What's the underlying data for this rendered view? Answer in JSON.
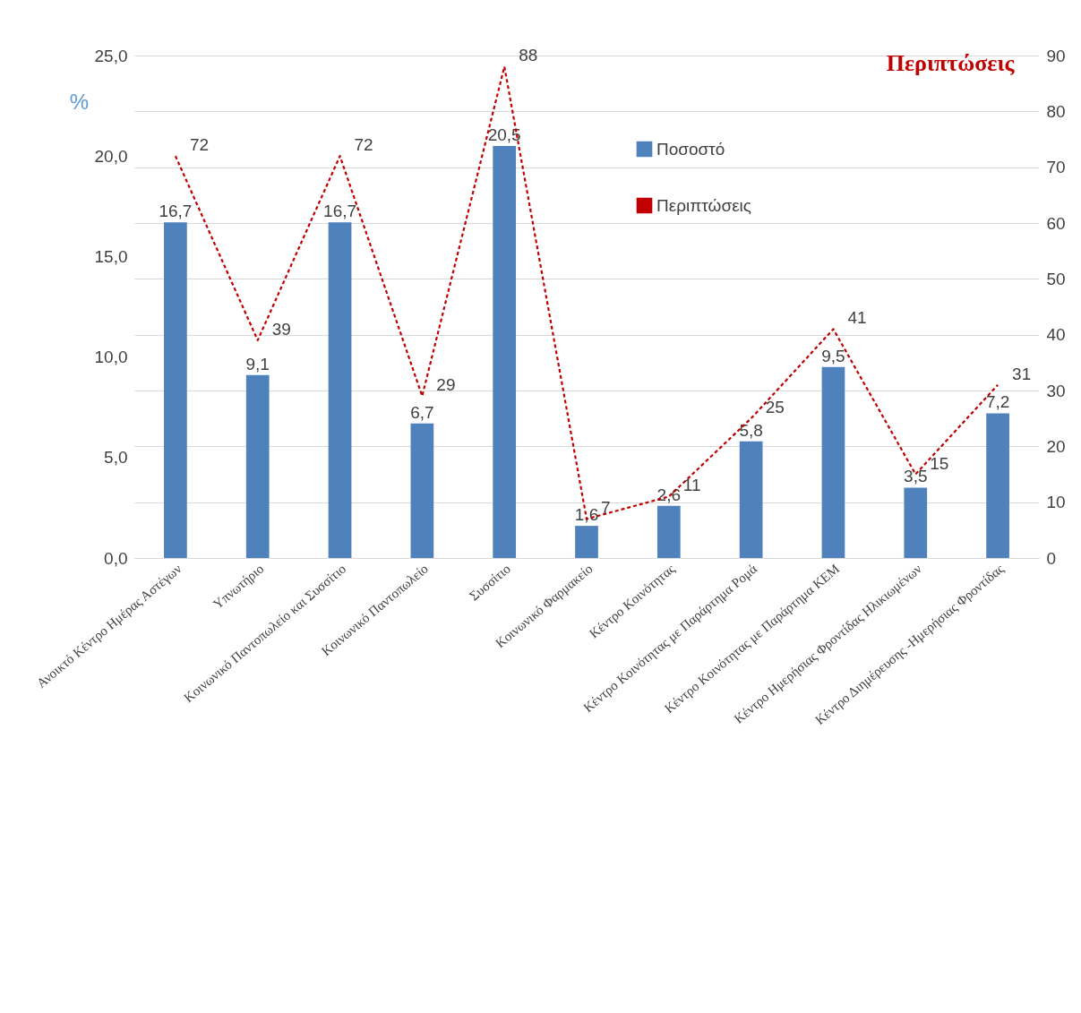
{
  "chart_data": {
    "type": "bar",
    "ylabel": "%",
    "y2label": "Περιπτώσεις",
    "categories": [
      "Ανοικτό Κέντρο Ημέρας Αστέγων",
      "Υπνωτήριο",
      "Κοινωνικό Παντοπωλείο και Συσσίτιο",
      "Κοινωνικό Παντοπωλείο",
      "Συσσίτιο",
      "Κοινωνικό Φαρμακείο",
      "Κέντρο Κοινότητας",
      "Κέντρο Κοινότητας με Παράρτημα Ρομά",
      "Κέντρο Κοινότητας με Παράρτημα ΚΕΜ",
      "Κέντρο Ημερήσιας Φροντίδας Ηλικιωμένων",
      "Κέντρο Διημέρευσης -Ημερήσιας Φροντίδας"
    ],
    "series": [
      {
        "name": "Ποσοστό",
        "color": "#4f81bd",
        "values": [
          16.7,
          9.1,
          16.7,
          6.7,
          20.5,
          1.6,
          2.6,
          5.8,
          9.5,
          3.5,
          7.2
        ],
        "value_labels": [
          "16,7",
          "9,1",
          "16,7",
          "6,7",
          "20,5",
          "1,6",
          "2,6",
          "5,8",
          "9,5",
          "3,5",
          "7,2"
        ]
      },
      {
        "name": "Περιπτώσεις",
        "type": "line",
        "axis": "y2",
        "color": "#c00000",
        "line_style": "dashed",
        "values": [
          72,
          39,
          72,
          29,
          88,
          7,
          11,
          25,
          41,
          15,
          31
        ],
        "data_labels": true
      }
    ],
    "ylim": [
      0,
      25
    ],
    "yticks": [
      {
        "value": 0,
        "label": "0,0"
      },
      {
        "value": 5,
        "label": "5,0"
      },
      {
        "value": 10,
        "label": "10,0"
      },
      {
        "value": 15,
        "label": "15,0"
      },
      {
        "value": 20,
        "label": "20,0"
      },
      {
        "value": 25,
        "label": "25,0"
      }
    ],
    "y2lim": [
      0,
      90
    ],
    "y2ticks": [
      0,
      10,
      20,
      30,
      40,
      50,
      60,
      70,
      80,
      90
    ],
    "grid": true,
    "legend": "top right"
  }
}
